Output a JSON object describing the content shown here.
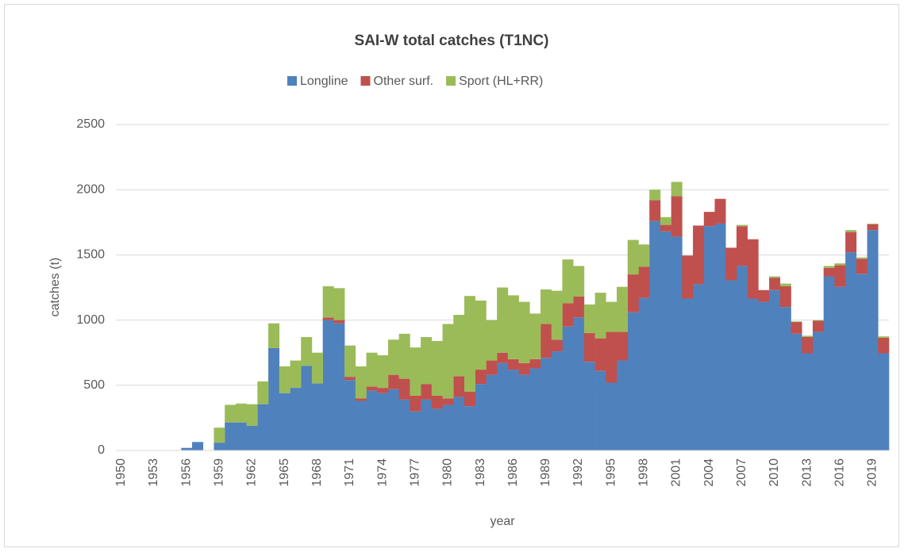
{
  "chart_data": {
    "type": "bar",
    "stacked": true,
    "title": "SAI-W total catches (T1NC)",
    "x_label": "year",
    "y_label": "catches (t)",
    "categories": [
      "1950",
      null,
      null,
      "1953",
      null,
      null,
      "1956",
      null,
      null,
      "1959",
      null,
      null,
      "1962",
      null,
      null,
      "1965",
      null,
      null,
      "1968",
      null,
      null,
      "1971",
      null,
      null,
      "1974",
      null,
      null,
      "1977",
      null,
      null,
      "1980",
      null,
      null,
      "1983",
      null,
      null,
      "1986",
      null,
      null,
      "1989",
      null,
      null,
      "1992",
      null,
      null,
      "1995",
      null,
      null,
      "1998",
      null,
      null,
      "2001",
      null,
      null,
      "2004",
      null,
      null,
      "2007",
      null,
      null,
      "2010",
      null,
      null,
      "2013",
      null,
      null,
      "2016",
      null,
      null,
      "2019",
      null
    ],
    "series": [
      {
        "name": "Longline",
        "color": "#4f81bd",
        "values": [
          0,
          0,
          0,
          0,
          0,
          0,
          20,
          65,
          0,
          60,
          215,
          215,
          190,
          355,
          785,
          440,
          480,
          650,
          515,
          1000,
          975,
          540,
          380,
          460,
          440,
          470,
          390,
          300,
          390,
          320,
          350,
          410,
          340,
          510,
          580,
          670,
          620,
          580,
          630,
          710,
          760,
          950,
          1020,
          680,
          610,
          520,
          690,
          1060,
          1170,
          1760,
          1680,
          1640,
          1165,
          1275,
          1720,
          1740,
          1305,
          1415,
          1165,
          1140,
          1230,
          1100,
          895,
          745,
          910,
          1335,
          1255,
          1520,
          1355,
          1690,
          745
        ]
      },
      {
        "name": "Other surf.",
        "color": "#c0504d",
        "values": [
          0,
          0,
          0,
          0,
          0,
          0,
          0,
          0,
          0,
          0,
          0,
          0,
          0,
          0,
          0,
          0,
          0,
          0,
          0,
          20,
          25,
          25,
          20,
          30,
          40,
          110,
          160,
          120,
          120,
          100,
          50,
          160,
          110,
          110,
          110,
          80,
          80,
          90,
          70,
          260,
          90,
          180,
          160,
          220,
          250,
          390,
          220,
          290,
          240,
          160,
          50,
          310,
          330,
          450,
          110,
          190,
          250,
          305,
          455,
          90,
          95,
          160,
          90,
          125,
          85,
          65,
          165,
          155,
          115,
          45,
          120
        ]
      },
      {
        "name": "Sport (HL+RR)",
        "color": "#9bbb59",
        "values": [
          0,
          0,
          0,
          0,
          0,
          0,
          0,
          0,
          0,
          115,
          135,
          145,
          165,
          175,
          190,
          205,
          210,
          220,
          235,
          240,
          245,
          240,
          245,
          260,
          250,
          270,
          345,
          370,
          360,
          420,
          570,
          470,
          735,
          530,
          310,
          500,
          490,
          470,
          350,
          265,
          375,
          335,
          235,
          220,
          350,
          230,
          345,
          265,
          170,
          80,
          60,
          110,
          0,
          0,
          0,
          0,
          0,
          10,
          0,
          0,
          10,
          20,
          5,
          10,
          5,
          15,
          15,
          15,
          10,
          5,
          10
        ]
      }
    ],
    "ylim": [
      0,
      2500
    ],
    "yticks": [
      0,
      500,
      1000,
      1500,
      2000,
      2500
    ],
    "grid": true,
    "legend": "top"
  }
}
